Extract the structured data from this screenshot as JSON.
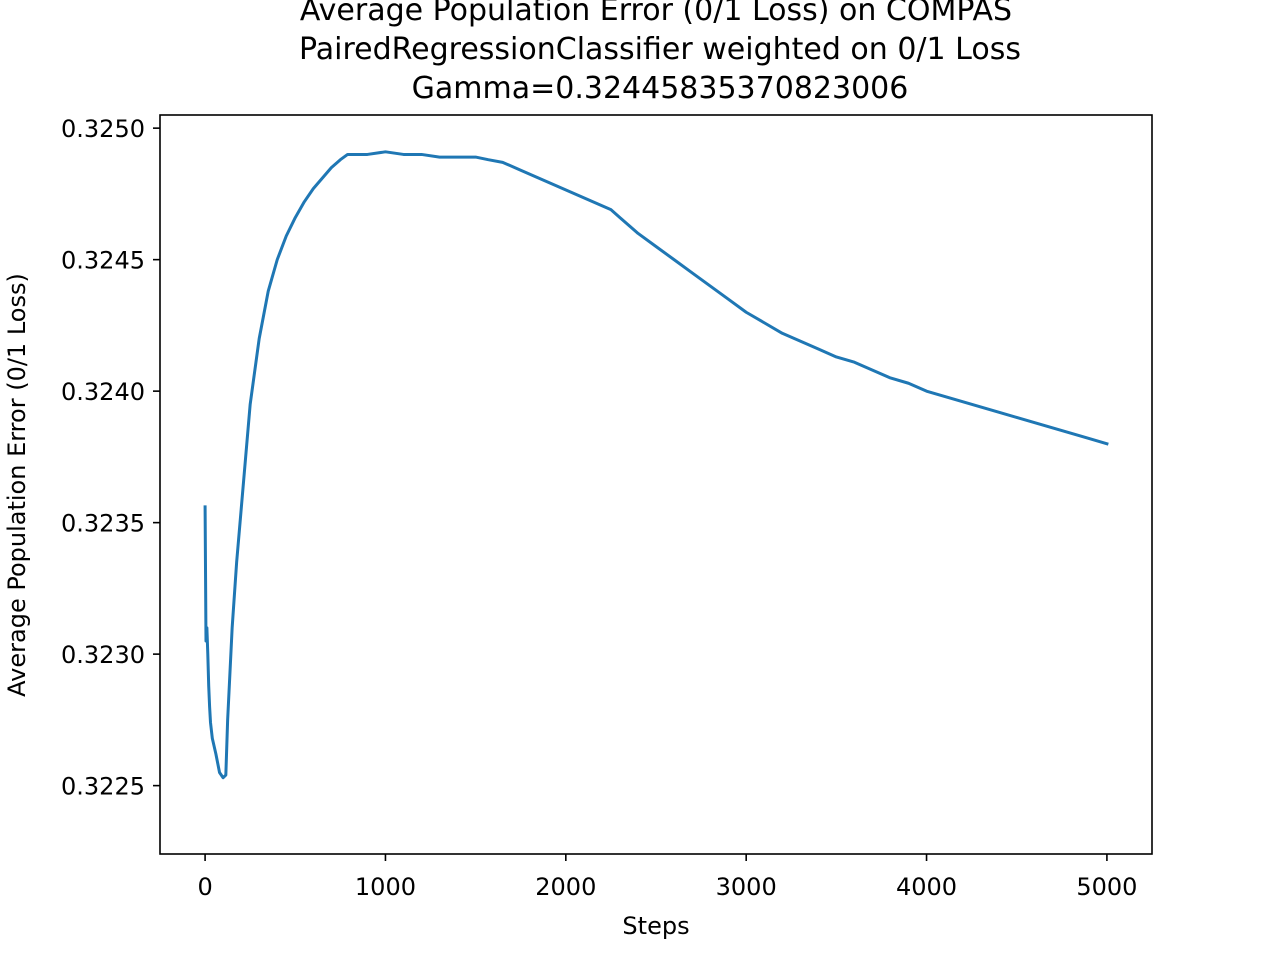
{
  "chart_data": {
    "type": "line",
    "title_lines": [
      "Average Population Error (0/1 Loss) on COMPAS",
      "PairedRegressionClassifier weighted on 0/1 Loss",
      "Gamma=0.32445835370823006"
    ],
    "xlabel": "Steps",
    "ylabel": "Average Population Error (0/1 Loss)",
    "xlim": [
      -250,
      5250
    ],
    "ylim": [
      0.32224,
      0.32505
    ],
    "xticks": [
      0,
      1000,
      2000,
      3000,
      4000,
      5000
    ],
    "xtick_labels": [
      "0",
      "1000",
      "2000",
      "3000",
      "4000",
      "5000"
    ],
    "yticks": [
      0.3225,
      0.323,
      0.3235,
      0.324,
      0.3245,
      0.325
    ],
    "ytick_labels": [
      "0.3225",
      "0.3230",
      "0.3235",
      "0.3240",
      "0.3245",
      "0.3250"
    ],
    "grid": false,
    "series": [
      {
        "color": "#1f77b4",
        "x": [
          0,
          5,
          10,
          15,
          20,
          25,
          30,
          40,
          60,
          80,
          100,
          115,
          125,
          150,
          175,
          200,
          225,
          250,
          300,
          350,
          400,
          450,
          500,
          550,
          600,
          650,
          700,
          750,
          790,
          900,
          1000,
          1100,
          1200,
          1300,
          1400,
          1500,
          1570,
          1650,
          1750,
          1850,
          1950,
          2050,
          2150,
          2250,
          2300,
          2400,
          2500,
          2600,
          2700,
          2800,
          2900,
          3000,
          3100,
          3200,
          3300,
          3400,
          3500,
          3600,
          3700,
          3800,
          3900,
          4000,
          4100,
          4200,
          4300,
          4400,
          4500,
          4600,
          4700,
          4800,
          4900,
          5000
        ],
        "y": [
          0.32356,
          0.32305,
          0.3231,
          0.323,
          0.32288,
          0.3228,
          0.32274,
          0.32268,
          0.32262,
          0.32255,
          0.32253,
          0.32254,
          0.32275,
          0.3231,
          0.32335,
          0.32355,
          0.32375,
          0.32395,
          0.3242,
          0.32438,
          0.3245,
          0.32459,
          0.32466,
          0.32472,
          0.32477,
          0.32481,
          0.32485,
          0.32488,
          0.3249,
          0.3249,
          0.32491,
          0.3249,
          0.3249,
          0.32489,
          0.32489,
          0.32489,
          0.32488,
          0.32487,
          0.32484,
          0.32481,
          0.32478,
          0.32475,
          0.32472,
          0.32469,
          0.32466,
          0.3246,
          0.32455,
          0.3245,
          0.32445,
          0.3244,
          0.32435,
          0.3243,
          0.32426,
          0.32422,
          0.32419,
          0.32416,
          0.32413,
          0.32411,
          0.32408,
          0.32405,
          0.32403,
          0.324,
          0.32398,
          0.32396,
          0.32394,
          0.32392,
          0.3239,
          0.32388,
          0.32386,
          0.32384,
          0.32382,
          0.3238
        ]
      }
    ]
  }
}
